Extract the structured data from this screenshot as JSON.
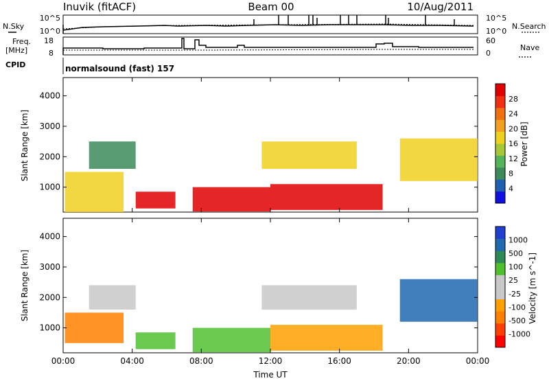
{
  "header": {
    "station": "Inuvik  (fitACF)",
    "beam": "Beam 00",
    "date": "10/Aug/2011"
  },
  "summary": {
    "nsky_label": "N.Sky",
    "nsearch_label": "N.Search",
    "freq_label_1": "Freq.",
    "freq_label_2": "[MHz]",
    "nave_label": "Nave",
    "cpid_label": "CPID",
    "cpid_text": "normalsound (fast) 157",
    "noise_ticks_left": [
      "10^5",
      "10^0"
    ],
    "noise_ticks_right": [
      "10^5",
      "10^0"
    ],
    "freq_ticks": [
      "18",
      "8"
    ],
    "nave_ticks": [
      "60",
      "0"
    ]
  },
  "colors": {
    "power_scale": [
      "#1010e0",
      "#2060b0",
      "#3c8a5a",
      "#55b35a",
      "#a8c838",
      "#f0d020",
      "#f4a020",
      "#f07010",
      "#f03010",
      "#e00000"
    ],
    "velocity_scale": [
      "#ff0000",
      "#ff4000",
      "#ff8000",
      "#ffa000",
      "#c8c8c8",
      "#c8c8c8",
      "#50c030",
      "#2e8a55",
      "#2068b0",
      "#2040d0"
    ]
  },
  "chart_data": [
    {
      "type": "heatmap",
      "title": "Power",
      "xlabel": "",
      "ylabel": "Slant Range [km]",
      "xlim": [
        "00:00",
        "24:00"
      ],
      "ylim": [
        180,
        4600
      ],
      "y_ticks": [
        "1000",
        "2000",
        "3000",
        "4000"
      ],
      "colorbar": {
        "label": "Power [dB]",
        "ticks": [
          "4",
          "8",
          "12",
          "16",
          "20",
          "24",
          "28"
        ],
        "range": [
          0,
          30
        ]
      },
      "regions": [
        {
          "t0": 0.1,
          "t1": 3.5,
          "r0": 180,
          "r1": 1500,
          "level": "moderate"
        },
        {
          "t0": 1.5,
          "t1": 4.2,
          "r0": 1600,
          "r1": 2500,
          "level": "low"
        },
        {
          "t0": 4.2,
          "t1": 6.5,
          "r0": 300,
          "r1": 850,
          "level": "high"
        },
        {
          "t0": 7.5,
          "t1": 12.0,
          "r0": 200,
          "r1": 1000,
          "level": "high"
        },
        {
          "t0": 12.0,
          "t1": 18.5,
          "r0": 250,
          "r1": 1100,
          "level": "high"
        },
        {
          "t0": 11.5,
          "t1": 17.0,
          "r0": 1600,
          "r1": 2500,
          "level": "moderate"
        },
        {
          "t0": 19.5,
          "t1": 24.0,
          "r0": 1200,
          "r1": 2600,
          "level": "moderate"
        }
      ]
    },
    {
      "type": "heatmap",
      "title": "Velocity",
      "xlabel": "Time UT",
      "ylabel": "Slant Range [km]",
      "xlim": [
        "00:00",
        "24:00"
      ],
      "ylim": [
        180,
        4600
      ],
      "x_ticks": [
        "00:00",
        "04:00",
        "08:00",
        "12:00",
        "16:00",
        "20:00",
        "00:00"
      ],
      "y_ticks": [
        "1000",
        "2000",
        "3000",
        "4000"
      ],
      "colorbar": {
        "label": "Velocity [m s^-1]",
        "ticks": [
          "1000",
          "500",
          "100",
          "25",
          "-25",
          "-100",
          "-500",
          "-1000"
        ]
      },
      "regions": [
        {
          "t0": 0.1,
          "t1": 3.5,
          "r0": 500,
          "r1": 1500,
          "level": "-500"
        },
        {
          "t0": 1.5,
          "t1": 4.2,
          "r0": 1600,
          "r1": 2400,
          "level": "0"
        },
        {
          "t0": 4.2,
          "t1": 6.5,
          "r0": 300,
          "r1": 850,
          "level": "100"
        },
        {
          "t0": 7.5,
          "t1": 12.0,
          "r0": 200,
          "r1": 1000,
          "level": "100"
        },
        {
          "t0": 12.0,
          "t1": 18.5,
          "r0": 250,
          "r1": 1100,
          "level": "-100"
        },
        {
          "t0": 11.5,
          "t1": 17.0,
          "r0": 1600,
          "r1": 2400,
          "level": "0"
        },
        {
          "t0": 19.5,
          "t1": 24.0,
          "r0": 1200,
          "r1": 2600,
          "level": "500"
        }
      ]
    }
  ]
}
